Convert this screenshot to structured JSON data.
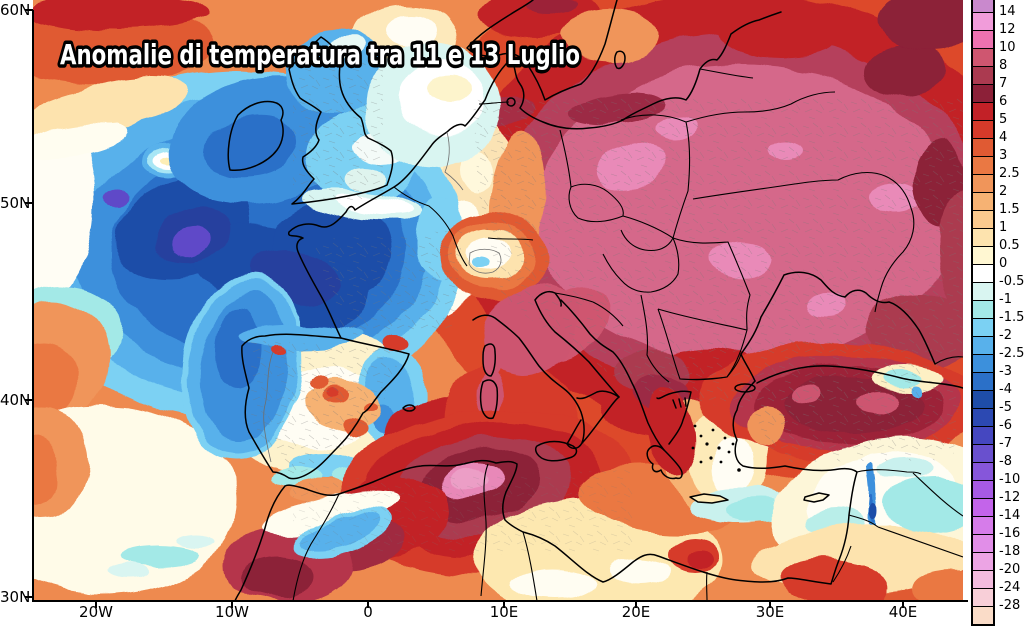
{
  "title": "Anomalie di temperatura tra 11 e 13 Luglio",
  "axes": {
    "lat_ticks": [
      "60N",
      "50N",
      "40N",
      "30N"
    ],
    "lon_ticks": [
      "20W",
      "10W",
      "0",
      "10E",
      "20E",
      "30E",
      "40E"
    ]
  },
  "colorbar": {
    "tick_labels": [
      "14",
      "12",
      "10",
      "8",
      "7",
      "6",
      "5",
      "4",
      "3",
      "2.5",
      "2",
      "1.5",
      "1",
      "0.5",
      "0",
      "-0.5",
      "-1",
      "-1.5",
      "-2",
      "-2.5",
      "-3",
      "-4",
      "-5",
      "-6",
      "-7",
      "-8",
      "-10",
      "-12",
      "-14",
      "-16",
      "-18",
      "-20",
      "-24",
      "-28"
    ],
    "cell_colors": [
      "#c989cd",
      "#f19cda",
      "#ed72b0",
      "#cf5670",
      "#ab3a50",
      "#8c2038",
      "#c22127",
      "#d63a2a",
      "#e05a33",
      "#ea7843",
      "#f0955a",
      "#f6b273",
      "#fbca8e",
      "#fde3ae",
      "#fff7d2",
      "#ffffff",
      "#d9f5f1",
      "#a3e9e7",
      "#7bd1f3",
      "#58b1eb",
      "#3c90dc",
      "#2b70c8",
      "#1e4da8",
      "#2c49b2",
      "#4547c0",
      "#6950ce",
      "#8656da",
      "#a65ae4",
      "#c364ea",
      "#d67cea",
      "#e18ee8",
      "#eca4e4",
      "#f3bbde",
      "#f8cfd8",
      "#fadcc8"
    ]
  },
  "chart_data": {
    "type": "heatmap",
    "title": "Anomalie di temperatura tra 11 e 13 Luglio",
    "lat_ticks": [
      "60N",
      "50N",
      "40N",
      "30N"
    ],
    "lon_ticks": [
      "20W",
      "10W",
      "0",
      "10E",
      "20E",
      "30E",
      "40E"
    ],
    "colorbar_levels": [
      14,
      12,
      10,
      8,
      7,
      6,
      5,
      4,
      3,
      2.5,
      2,
      1.5,
      1,
      0.5,
      0,
      -0.5,
      -1,
      -1.5,
      -2,
      -2.5,
      -3,
      -4,
      -5,
      -6,
      -7,
      -8,
      -10,
      -12,
      -14,
      -16,
      -18,
      -20,
      -24,
      -28
    ],
    "colorbar_colors": [
      "#c989cd",
      "#f19cda",
      "#ed72b0",
      "#cf5670",
      "#ab3a50",
      "#8c2038",
      "#c22127",
      "#d63a2a",
      "#e05a33",
      "#ea7843",
      "#f0955a",
      "#f6b273",
      "#fbca8e",
      "#fde3ae",
      "#fff7d2",
      "#ffffff",
      "#d9f5f1",
      "#a3e9e7",
      "#7bd1f3",
      "#58b1eb",
      "#3c90dc",
      "#2b70c8",
      "#1e4da8",
      "#2c49b2",
      "#4547c0",
      "#6950ce",
      "#8656da",
      "#a65ae4",
      "#c364ea",
      "#d67cea",
      "#e18ee8",
      "#eca4e4",
      "#f3bbde",
      "#f8cfd8",
      "#fadcc8"
    ],
    "features": [
      "Strong negative anomaly (-4 to -8) over NE Atlantic, Ireland, UK and France",
      "Small violet cores near -8 west of Ireland",
      "Strong positive anomaly (+8 to +12, pink) over central-eastern Europe and Balkans",
      "Dark red +6 to +8 over Turkey and Anatolia",
      "Maroon +6 to +8 core with pink +10 patch over NE Algeria / Tunisia",
      "Near-zero to weakly negative band over Iberia with scattered warm spots",
      "White/neutral Alps spot with small cool patch",
      "Pale/neutral Aegean with cyan south of Crete",
      "Cool cyan patches over the Levant and south of the Black Sea east coast",
      "Warm orange/red band along top edge over Scandinavia and NW Russia"
    ]
  }
}
